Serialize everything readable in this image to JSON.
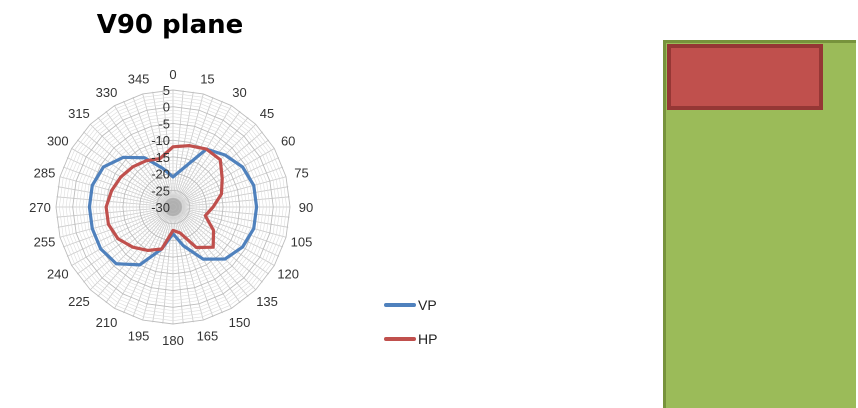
{
  "chart_data": {
    "type": "radar",
    "title": "V90 plane",
    "angle_labels": [
      "0",
      "15",
      "30",
      "45",
      "60",
      "75",
      "90",
      "105",
      "120",
      "135",
      "150",
      "165",
      "180",
      "195",
      "210",
      "225",
      "240",
      "255",
      "270",
      "285",
      "300",
      "315",
      "330",
      "345"
    ],
    "radial_ticks": [
      "5",
      "0",
      "-5",
      "-10",
      "-15",
      "-20",
      "-25",
      "-30"
    ],
    "rlim": [
      -30,
      5
    ],
    "grid": true,
    "legend_position": "right",
    "series": [
      {
        "name": "VP",
        "color": "#4f81bd",
        "values": [
          -21,
          -18,
          -10,
          -8,
          -6,
          -5,
          -5,
          -5,
          -6,
          -8,
          -12,
          -18,
          -22,
          -17,
          -10,
          -6,
          -5,
          -5,
          -5,
          -5,
          -6,
          -9,
          -13,
          -18
        ]
      },
      {
        "name": "HP",
        "color": "#c0504d",
        "values": [
          -12,
          -11,
          -10,
          -10,
          -13,
          -15,
          -18,
          -20,
          -16,
          -13,
          -16,
          -22,
          -23,
          -17,
          -15,
          -13,
          -11,
          -10,
          -10,
          -11,
          -12,
          -13,
          -14,
          -15
        ]
      }
    ]
  }
}
